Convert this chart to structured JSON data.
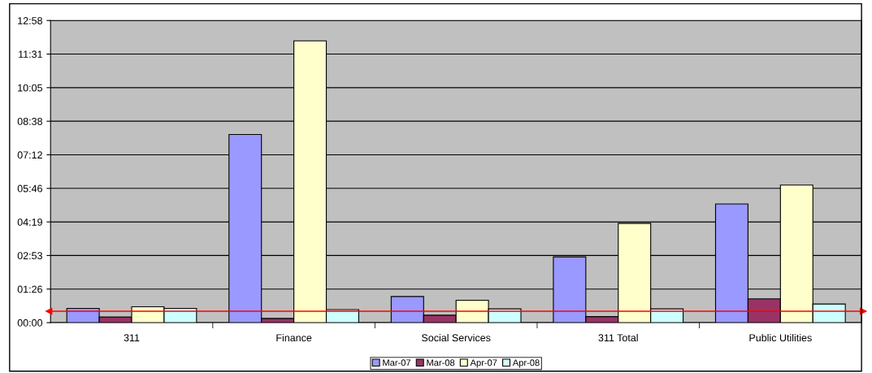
{
  "chart_data": {
    "type": "bar",
    "categories": [
      "311",
      "Finance",
      "Social Services",
      "311 Total",
      "Public Utilities"
    ],
    "series": [
      {
        "name": "Mar-07",
        "color": "#9999ff",
        "values": [
          0.61,
          8.07,
          1.12,
          2.82,
          5.09
        ]
      },
      {
        "name": "Mar-08",
        "color": "#993366",
        "values": [
          0.24,
          0.18,
          0.32,
          0.26,
          1.02
        ]
      },
      {
        "name": "Apr-07",
        "color": "#ffffcc",
        "values": [
          0.68,
          12.09,
          0.96,
          4.26,
          5.9
        ]
      },
      {
        "name": "Apr-08",
        "color": "#ccffff",
        "values": [
          0.61,
          0.56,
          0.59,
          0.59,
          0.8
        ]
      }
    ],
    "ylim": [
      0,
      12.96
    ],
    "yticks": [
      {
        "value": 0,
        "label": "00:00"
      },
      {
        "value": 1.44,
        "label": "01:26"
      },
      {
        "value": 2.88,
        "label": "02:53"
      },
      {
        "value": 4.32,
        "label": "04:19"
      },
      {
        "value": 5.76,
        "label": "05:46"
      },
      {
        "value": 7.2,
        "label": "07:12"
      },
      {
        "value": 8.64,
        "label": "08:38"
      },
      {
        "value": 10.08,
        "label": "10:05"
      },
      {
        "value": 11.52,
        "label": "11:31"
      },
      {
        "value": 12.96,
        "label": "12:58"
      }
    ],
    "ref_lines": [
      {
        "axis": "y",
        "value": 0.49,
        "color": "#ff0000"
      }
    ],
    "grid": "y",
    "legend": "bottom"
  }
}
